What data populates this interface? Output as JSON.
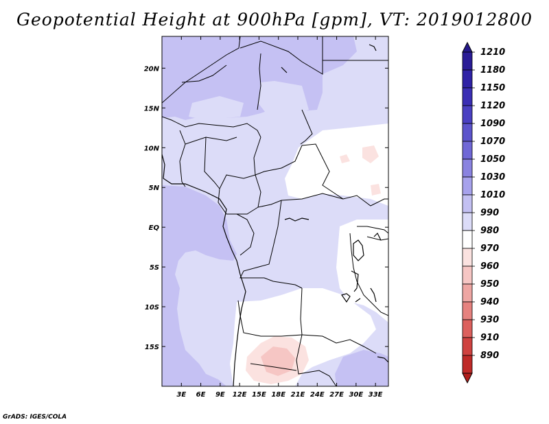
{
  "title": "Geopotential Height at 900hPa [gpm], VT: 2019012800",
  "credit": "GrADS: IGES/COLA",
  "map": {
    "variable": "Geopotential Height",
    "level": "900hPa",
    "units": "gpm",
    "valid_time": "2019012800",
    "lon_range": [
      0,
      35
    ],
    "lat_range": [
      -20,
      24
    ],
    "lat_ticks": [
      {
        "value": 20,
        "label": "20N"
      },
      {
        "value": 15,
        "label": "15N"
      },
      {
        "value": 10,
        "label": "10N"
      },
      {
        "value": 5,
        "label": "5N"
      },
      {
        "value": 0,
        "label": "EQ"
      },
      {
        "value": -5,
        "label": "5S"
      },
      {
        "value": -10,
        "label": "10S"
      },
      {
        "value": -15,
        "label": "15S"
      }
    ],
    "lon_ticks": [
      {
        "value": 3,
        "label": "3E"
      },
      {
        "value": 6,
        "label": "6E"
      },
      {
        "value": 9,
        "label": "9E"
      },
      {
        "value": 12,
        "label": "12E"
      },
      {
        "value": 15,
        "label": "15E"
      },
      {
        "value": 18,
        "label": "18E"
      },
      {
        "value": 21,
        "label": "21E"
      },
      {
        "value": 24,
        "label": "24E"
      },
      {
        "value": 27,
        "label": "27E"
      },
      {
        "value": 30,
        "label": "30E"
      },
      {
        "value": 33,
        "label": "33E"
      }
    ]
  },
  "colorbar": {
    "levels": [
      {
        "label": "1210",
        "color": "#2a1c96"
      },
      {
        "label": "1180",
        "color": "#2f22a6"
      },
      {
        "label": "1150",
        "color": "#3a2eb4"
      },
      {
        "label": "1120",
        "color": "#4a40c2"
      },
      {
        "label": "1090",
        "color": "#5c54cc"
      },
      {
        "label": "1070",
        "color": "#7068d6"
      },
      {
        "label": "1050",
        "color": "#8a83e0"
      },
      {
        "label": "1030",
        "color": "#a7a2ec"
      },
      {
        "label": "1010",
        "color": "#c3c0f2"
      },
      {
        "label": "990",
        "color": "#dcdcf8"
      },
      {
        "label": "980",
        "color": "#ffffff"
      },
      {
        "label": "970",
        "color": "#fbe2e0"
      },
      {
        "label": "960",
        "color": "#f6c6c4"
      },
      {
        "label": "950",
        "color": "#eea6a3"
      },
      {
        "label": "940",
        "color": "#e6827f"
      },
      {
        "label": "930",
        "color": "#dc605d"
      },
      {
        "label": "910",
        "color": "#cf4240"
      },
      {
        "label": "890",
        "color": "#bf2a28"
      }
    ],
    "top_cap_color": "#24188a",
    "bottom_cap_color": "#b01e1c"
  },
  "colors": {
    "field_1030": "#c5c1f3",
    "field_1010": "#dcdcf8",
    "field_990": "#ffffff",
    "field_980": "#fbe2e0",
    "field_970": "#f6c6c4",
    "border": "#000000"
  }
}
